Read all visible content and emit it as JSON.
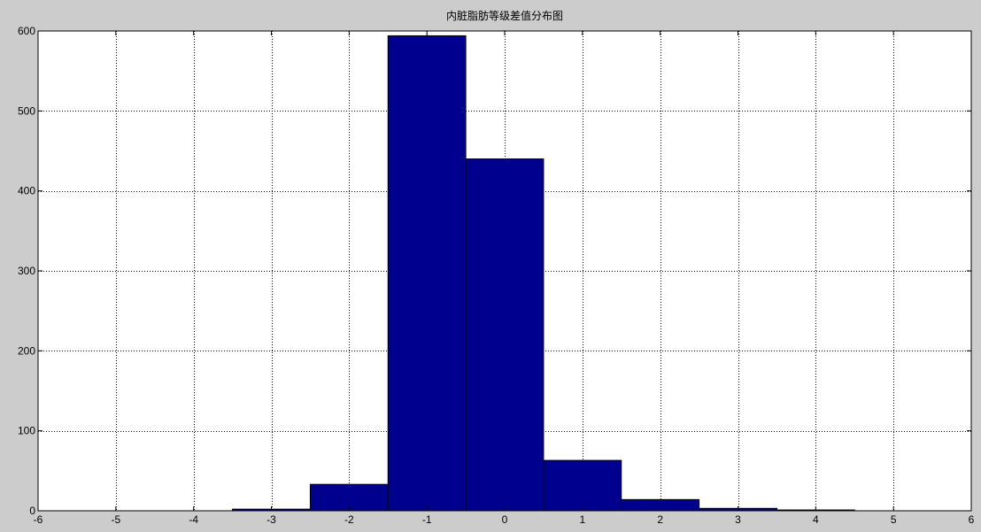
{
  "chart_data": {
    "type": "bar",
    "title": "内脏脂肪等级差值分布图",
    "xlabel": "",
    "ylabel": "",
    "xlim": [
      -6,
      6
    ],
    "ylim": [
      0,
      600
    ],
    "xticks": [
      "-6",
      "-5",
      "-4",
      "-3",
      "-2",
      "-1",
      "0",
      "1",
      "2",
      "3",
      "4",
      "5",
      "6"
    ],
    "yticks": [
      "0",
      "100",
      "200",
      "300",
      "400",
      "500",
      "600"
    ],
    "grid": true,
    "bin_width": 1,
    "x": [
      -3,
      -2,
      -1,
      0,
      1,
      2,
      3,
      4
    ],
    "values": [
      2,
      33,
      594,
      440,
      63,
      14,
      3,
      1
    ],
    "colors": {
      "bar_fill": "#00008f",
      "bar_edge": "#000000",
      "plot_bg": "#ffffff",
      "figure_bg": "#cccccc",
      "grid": "#000000"
    }
  }
}
